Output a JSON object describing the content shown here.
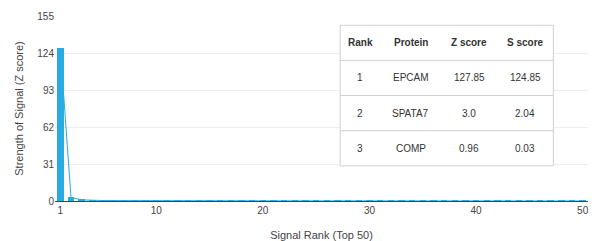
{
  "chart_data": {
    "type": "bar",
    "x": [
      1,
      2,
      3,
      4,
      5,
      6,
      7,
      8,
      9,
      10,
      11,
      12,
      13,
      14,
      15,
      16,
      17,
      18,
      19,
      20,
      21,
      22,
      23,
      24,
      25,
      26,
      27,
      28,
      29,
      30,
      31,
      32,
      33,
      34,
      35,
      36,
      37,
      38,
      39,
      40,
      41,
      42,
      43,
      44,
      45,
      46,
      47,
      48,
      49,
      50
    ],
    "series": [
      {
        "type": "bar",
        "color": "#29abe2",
        "values": [
          127.85,
          3.0,
          0.96,
          0.5,
          0.4,
          0.35,
          0.3,
          0.28,
          0.25,
          0.22,
          0.2,
          0.18,
          0.17,
          0.16,
          0.15,
          0.14,
          0.13,
          0.12,
          0.11,
          0.1,
          0.1,
          0.09,
          0.09,
          0.08,
          0.08,
          0.07,
          0.07,
          0.06,
          0.06,
          0.06,
          0.05,
          0.05,
          0.05,
          0.05,
          0.04,
          0.04,
          0.04,
          0.04,
          0.03,
          0.03,
          0.03,
          0.03,
          0.03,
          0.02,
          0.02,
          0.02,
          0.02,
          0.02,
          0.01,
          0.01
        ]
      },
      {
        "type": "line",
        "color": "#29abe2",
        "values": [
          127.85,
          3.0,
          0.96,
          0.5,
          0.4,
          0.35,
          0.3,
          0.28,
          0.25,
          0.22,
          0.2,
          0.18,
          0.17,
          0.16,
          0.15,
          0.14,
          0.13,
          0.12,
          0.11,
          0.1,
          0.1,
          0.09,
          0.09,
          0.08,
          0.08,
          0.07,
          0.07,
          0.06,
          0.06,
          0.06,
          0.05,
          0.05,
          0.05,
          0.05,
          0.04,
          0.04,
          0.04,
          0.04,
          0.03,
          0.03,
          0.03,
          0.03,
          0.03,
          0.02,
          0.02,
          0.02,
          0.02,
          0.02,
          0.01,
          0.01
        ]
      }
    ],
    "xlabel": "Signal Rank (Top 50)",
    "ylabel": "Strength of Signal (Z score)",
    "xlim": [
      0.5,
      50.5
    ],
    "xticks": [
      1,
      10,
      20,
      30,
      40,
      50
    ],
    "ylim": [
      0,
      155
    ],
    "yticks": [
      0,
      31,
      62,
      93,
      124,
      155
    ],
    "grid": "y",
    "table": {
      "header": [
        "Rank",
        "Protein",
        "Z score",
        "S score"
      ],
      "rows": [
        [
          "1",
          "EPCAM",
          "127.85",
          "124.85"
        ],
        [
          "2",
          "SPATA7",
          "3.0",
          "2.04"
        ],
        [
          "3",
          "COMP",
          "0.96",
          "0.03"
        ]
      ]
    }
  }
}
